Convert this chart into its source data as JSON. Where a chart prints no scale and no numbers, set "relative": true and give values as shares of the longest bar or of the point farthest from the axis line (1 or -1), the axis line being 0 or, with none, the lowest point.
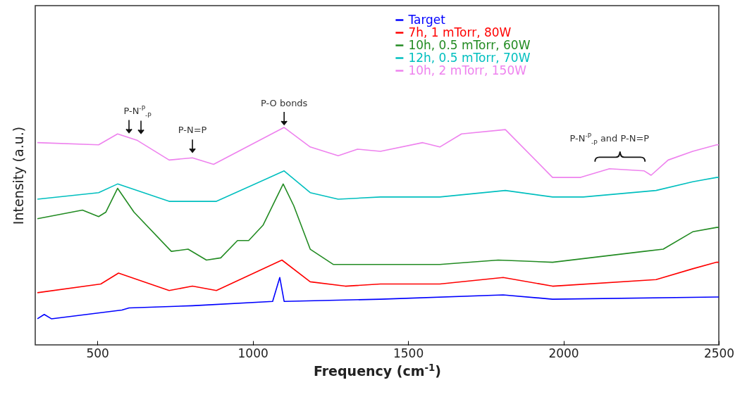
{
  "chart_data": {
    "type": "line",
    "relative": true,
    "xlabel": "Frequency (cm$^{-1}$)",
    "ylabel": "Intensity (a.u.)",
    "xlim": [
      300,
      2500
    ],
    "xticks": [
      500,
      1000,
      1500,
      2000,
      2500
    ],
    "legend": "top",
    "line_style": "solid",
    "marker": "none",
    "series": [
      {
        "name": "Target",
        "color": "#0000ff",
        "x": [
          307,
          329,
          352,
          579,
          602,
          806,
          1064,
          1087,
          1101,
          1411,
          1806,
          1965,
          2493,
          2500
        ],
        "values": [
          0.12,
          0.14,
          0.12,
          0.16,
          0.17,
          0.18,
          0.2,
          0.31,
          0.2,
          0.21,
          0.23,
          0.21,
          0.22,
          0.22
        ]
      },
      {
        "name": "7h, 1 mTorr, 80W",
        "color": "#ff0000",
        "x": [
          307,
          511,
          568,
          731,
          806,
          883,
          1094,
          1185,
          1298,
          1411,
          1602,
          1806,
          1965,
          2298,
          2416,
          2493,
          2500
        ],
        "values": [
          0.24,
          0.28,
          0.33,
          0.25,
          0.27,
          0.25,
          0.39,
          0.29,
          0.27,
          0.28,
          0.28,
          0.31,
          0.27,
          0.3,
          0.35,
          0.38,
          0.38
        ]
      },
      {
        "name": "10h, 0.5 mTorr, 60W",
        "color": "#228b22",
        "x": [
          307,
          452,
          504,
          527,
          565,
          618,
          738,
          792,
          851,
          897,
          951,
          987,
          1033,
          1098,
          1132,
          1185,
          1259,
          1411,
          1602,
          1790,
          1965,
          2260,
          2321,
          2416,
          2493,
          2500
        ],
        "values": [
          0.58,
          0.62,
          0.59,
          0.61,
          0.72,
          0.61,
          0.43,
          0.44,
          0.39,
          0.4,
          0.48,
          0.48,
          0.55,
          0.74,
          0.64,
          0.44,
          0.37,
          0.37,
          0.37,
          0.39,
          0.38,
          0.43,
          0.44,
          0.52,
          0.54,
          0.54
        ]
      },
      {
        "name": "12h, 0.5 mTorr, 70W",
        "color": "#00bfbf",
        "x": [
          307,
          504,
          565,
          731,
          883,
          1101,
          1185,
          1275,
          1411,
          1602,
          1813,
          1965,
          2064,
          2298,
          2416,
          2493,
          2500
        ],
        "values": [
          0.67,
          0.7,
          0.74,
          0.66,
          0.66,
          0.8,
          0.7,
          0.67,
          0.68,
          0.68,
          0.71,
          0.68,
          0.68,
          0.71,
          0.75,
          0.77,
          0.77
        ]
      },
      {
        "name": "10h, 2 mTorr, 150W",
        "color": "#ee82ee",
        "x": [
          307,
          504,
          565,
          629,
          731,
          806,
          874,
          1101,
          1185,
          1275,
          1337,
          1411,
          1547,
          1602,
          1672,
          1813,
          1965,
          2055,
          2148,
          2260,
          2282,
          2337,
          2416,
          2493,
          2500
        ],
        "values": [
          0.93,
          0.92,
          0.97,
          0.94,
          0.85,
          0.86,
          0.83,
          1.0,
          0.91,
          0.87,
          0.9,
          0.89,
          0.93,
          0.91,
          0.97,
          0.99,
          0.77,
          0.77,
          0.81,
          0.8,
          0.78,
          0.85,
          0.89,
          0.92,
          0.92
        ]
      }
    ],
    "annotations": [
      {
        "text": "P-N$^{-P}$$_{-P}$",
        "x": 629,
        "y": 0.94
      },
      {
        "text": "P-N=P",
        "x": 806,
        "y": 0.86
      },
      {
        "text": "P-O bonds",
        "x": 1101,
        "y": 1.0
      },
      {
        "text": "P-N$^{-P}$$_{-P}$ and P-N=P",
        "x": 2148,
        "y": 0.81
      }
    ]
  }
}
